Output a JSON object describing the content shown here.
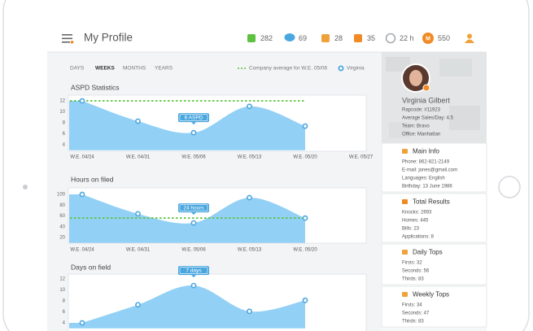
{
  "header": {
    "title": "My Profile",
    "stats": [
      282,
      69,
      28,
      35,
      "22 h",
      550
    ],
    "avatar_initial": "M"
  },
  "tabs": [
    "DAYS",
    "WEEKS",
    "MONTHS",
    "YEARS"
  ],
  "active_tab": 1,
  "legend": {
    "average": "Company average for W.E. 05/06",
    "person": "Virginia",
    "average_color": "#5cc23f",
    "person_color": "#4aa6df"
  },
  "chart_data": [
    {
      "type": "area",
      "title": "ASPD Statistics",
      "categories": [
        "W.E. 04/24",
        "W.E. 04/31",
        "W.E. 05/06",
        "W.E. 05/13",
        "W.E. 05/20",
        "W.E. 05/27"
      ],
      "values": [
        12,
        8.3,
        6.2,
        11,
        7.4,
        null
      ],
      "average": 12,
      "annotation": "6 ASPD",
      "color": "#92d0f5",
      "ylim": [
        3,
        13
      ],
      "yticks": [
        4,
        6,
        8,
        10,
        12
      ]
    },
    {
      "type": "area",
      "title": "Hours on filed",
      "categories": [
        "W.E. 04/24",
        "W.E. 04/31",
        "W.E. 05/06",
        "W.E. 05/13",
        "W.E. 05/20"
      ],
      "values": [
        100,
        64,
        47,
        94,
        56
      ],
      "average": 56,
      "annotation": "24 hours",
      "color": "#92d0f5",
      "ylim": [
        10,
        110
      ],
      "yticks": [
        20,
        40,
        60,
        80,
        100
      ]
    },
    {
      "type": "area",
      "title": "Days on field",
      "values": [
        4,
        7.3,
        10.8,
        6.1,
        8.1
      ],
      "annotation": "7 days",
      "color": "#92d0f5",
      "ylim": [
        3,
        13
      ],
      "yticks": [
        4,
        6,
        8,
        10,
        12
      ]
    }
  ],
  "profile": {
    "name": "Virginia Gilbert",
    "details": [
      "Rapcode: #11923",
      "Average Sales/Day: 4.5",
      "Team: Bravo",
      "Office: Manhattan"
    ]
  },
  "sections": [
    {
      "title": "Main Info",
      "items": [
        "Phone: 862-821-2149",
        "E-mail: jones@gmail.com",
        "Languages: English",
        "Birthday: 13 June 1986"
      ]
    },
    {
      "title": "Total Results",
      "items": [
        "Knocks: 2693",
        "Homes: 445",
        "Bills: 23",
        "Applications: 8"
      ]
    },
    {
      "title": "Daily Tops",
      "items": [
        "Firsts: 32",
        "Seconds: 56",
        "Thirds: 83"
      ]
    },
    {
      "title": "Weekly Tops",
      "items": [
        "Firsts: 34",
        "Seconds: 47",
        "Thirds: 83"
      ]
    }
  ]
}
